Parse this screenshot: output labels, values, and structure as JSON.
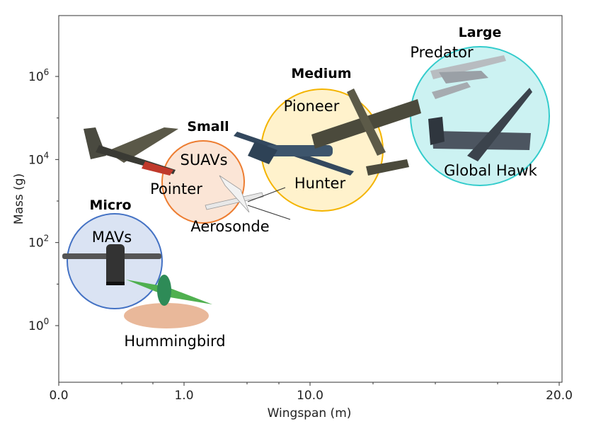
{
  "chart_data": {
    "type": "bubble",
    "title": "",
    "xlabel": "Wingspan (m)",
    "ylabel": "Mass (g)",
    "x_ticks": [
      "0.0",
      "1.0",
      "10.0",
      "20.0"
    ],
    "y_ticks": [
      {
        "base": "10",
        "exp": "0",
        "value": 1
      },
      {
        "base": "10",
        "exp": "2",
        "value": 100
      },
      {
        "base": "10",
        "exp": "4",
        "value": 10000
      },
      {
        "base": "10",
        "exp": "6",
        "value": 1000000
      }
    ],
    "y_scale": "log",
    "categories": [
      {
        "id": "micro",
        "category": "Micro",
        "group": "MAVs",
        "color": "#4472c4",
        "fill": "#dae3f3",
        "examples": [
          "Hummingbird"
        ]
      },
      {
        "id": "small",
        "category": "Small",
        "group": "SUAVs",
        "color": "#ed7d31",
        "fill": "#fbe5d6",
        "examples": [
          "Pointer",
          "Aerosonde"
        ]
      },
      {
        "id": "medium",
        "category": "Medium",
        "group": "",
        "color": "#f4b400",
        "fill": "#fff2cc",
        "examples": [
          "Pioneer",
          "Hunter"
        ]
      },
      {
        "id": "large",
        "category": "Large",
        "group": "",
        "color": "#33cccc",
        "fill": "#ccf2f2",
        "examples": [
          "Predator",
          "Global Hawk"
        ]
      }
    ],
    "grid": false,
    "legend": "none"
  }
}
